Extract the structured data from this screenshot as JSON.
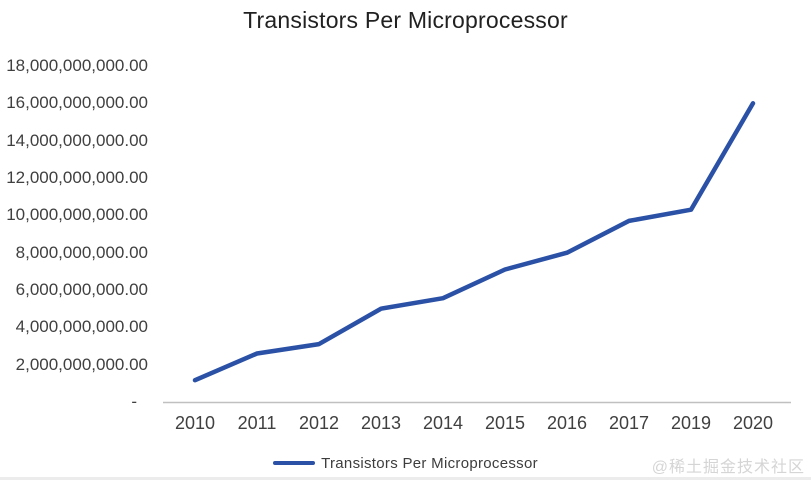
{
  "page": {
    "watermark": "@稀土掘金技术社区"
  },
  "chart_data": {
    "type": "line",
    "title": "Transistors Per Microprocessor",
    "categories": [
      "2010",
      "2011",
      "2012",
      "2013",
      "2014",
      "2015",
      "2016",
      "2017",
      "2019",
      "2020"
    ],
    "series": [
      {
        "name": "Transistors Per Microprocessor",
        "values": [
          1170000000,
          2600000000,
          3100000000,
          5000000000,
          5560000000,
          7100000000,
          8000000000,
          9700000000,
          10300000000,
          16000000000
        ]
      }
    ],
    "xlabel": "",
    "ylabel": "",
    "ylim": [
      0,
      18000000000
    ],
    "grid": false,
    "legend_position": "bottom",
    "y_ticks": [
      {
        "value": 18000000000,
        "label": "18,000,000,000.00"
      },
      {
        "value": 16000000000,
        "label": "16,000,000,000.00"
      },
      {
        "value": 14000000000,
        "label": "14,000,000,000.00"
      },
      {
        "value": 12000000000,
        "label": "12,000,000,000.00"
      },
      {
        "value": 10000000000,
        "label": "10,000,000,000.00"
      },
      {
        "value": 8000000000,
        "label": "8,000,000,000.00"
      },
      {
        "value": 6000000000,
        "label": "6,000,000,000.00"
      },
      {
        "value": 4000000000,
        "label": "4,000,000,000.00"
      },
      {
        "value": 2000000000,
        "label": "2,000,000,000.00"
      },
      {
        "value": 0,
        "label": "-"
      }
    ],
    "colors": {
      "line": "#2A51A6",
      "axis_line": "#C0C0C0",
      "tick_label": "#404040",
      "title": "#212121",
      "watermark": "#D5D5D5"
    }
  },
  "legend": {
    "label": "Transistors Per Microprocessor"
  }
}
